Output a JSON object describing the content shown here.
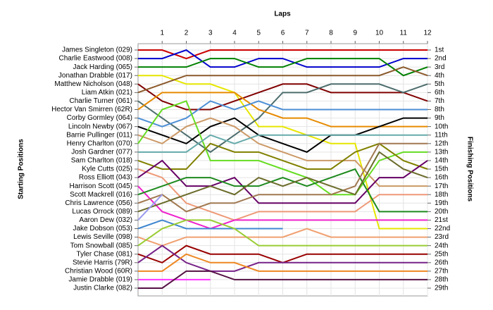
{
  "chart_data": {
    "type": "line",
    "title": "Laps",
    "y_label": "Starting Positions",
    "y2_label": "Finishing Positions",
    "x": [
      0,
      1,
      2,
      3,
      4,
      5,
      6,
      7,
      8,
      9,
      10,
      11,
      12
    ],
    "xlim": [
      0,
      12
    ],
    "xticks": [
      1,
      2,
      3,
      4,
      5,
      6,
      7,
      8,
      9,
      10,
      11,
      12
    ],
    "ylim": [
      1,
      29
    ],
    "y_inverted": true,
    "grid": true,
    "y2ticks": [
      {
        "value": 1,
        "label": "1st"
      },
      {
        "value": 2,
        "label": "2nd"
      },
      {
        "value": 3,
        "label": "3rd"
      },
      {
        "value": 4,
        "label": "4th"
      },
      {
        "value": 5,
        "label": "5th"
      },
      {
        "value": 6,
        "label": "6th"
      },
      {
        "value": 7,
        "label": "7th"
      },
      {
        "value": 8,
        "label": "8th"
      },
      {
        "value": 9,
        "label": "9th"
      },
      {
        "value": 10,
        "label": "10th"
      },
      {
        "value": 11,
        "label": "11th"
      },
      {
        "value": 12,
        "label": "12th"
      },
      {
        "value": 13,
        "label": "13th"
      },
      {
        "value": 14,
        "label": "14th"
      },
      {
        "value": 15,
        "label": "15th"
      },
      {
        "value": 16,
        "label": "16th"
      },
      {
        "value": 17,
        "label": "17th"
      },
      {
        "value": 18,
        "label": "18th"
      },
      {
        "value": 19,
        "label": "19th"
      },
      {
        "value": 20,
        "label": "20th"
      },
      {
        "value": 21,
        "label": "21st"
      },
      {
        "value": 22,
        "label": "22nd"
      },
      {
        "value": 23,
        "label": "23rd"
      },
      {
        "value": 24,
        "label": "24th"
      },
      {
        "value": 25,
        "label": "25th"
      },
      {
        "value": 26,
        "label": "26th"
      },
      {
        "value": 27,
        "label": "27th"
      },
      {
        "value": 28,
        "label": "28th"
      },
      {
        "value": 29,
        "label": "29th"
      }
    ],
    "series": [
      {
        "name": "James Singleton (029)",
        "color": "#cc0000",
        "values": [
          1,
          1,
          2,
          1,
          1,
          1,
          1,
          1,
          1,
          1,
          1,
          1,
          1
        ]
      },
      {
        "name": "Charlie Eastwood (008)",
        "color": "#0000cc",
        "values": [
          2,
          2,
          1,
          3,
          3,
          2,
          2,
          3,
          3,
          3,
          3,
          2,
          2
        ]
      },
      {
        "name": "Jack Harding (065)",
        "color": "#008000",
        "values": [
          3,
          3,
          3,
          2,
          2,
          3,
          3,
          2,
          2,
          2,
          2,
          4,
          3
        ]
      },
      {
        "name": "Jonathan Drabble (017)",
        "color": "#e6e600",
        "values": [
          4,
          4,
          5,
          5,
          6,
          10,
          10,
          11,
          12,
          12,
          22,
          22,
          22
        ]
      },
      {
        "name": "Matthew Nicholson (048)",
        "color": "#800000",
        "values": [
          5,
          7,
          8,
          8,
          7,
          6,
          5,
          5,
          6,
          6,
          6,
          6,
          7
        ]
      },
      {
        "name": "Liam Atkin (021)",
        "color": "#8b5a2b",
        "values": [
          6,
          5,
          4,
          4,
          4,
          4,
          4,
          4,
          4,
          4,
          4,
          3,
          4
        ]
      },
      {
        "name": "Charlie Turner (061)",
        "color": "#4d6d6d",
        "values": [
          7,
          9,
          11,
          13,
          11,
          9,
          6,
          6,
          5,
          5,
          5,
          6,
          5
        ]
      },
      {
        "name": "Hector Van Smirren (62R)",
        "color": "#e68a00",
        "values": [
          8,
          6,
          6,
          6,
          6,
          8,
          9,
          9,
          10,
          10,
          10,
          10,
          10
        ]
      },
      {
        "name": "Corby Gormley (064)",
        "color": "#4d8fd6",
        "values": [
          9,
          10,
          9,
          7,
          8,
          7,
          8,
          8,
          8,
          8,
          8,
          8,
          8
        ]
      },
      {
        "name": "Lincoln Newby (067)",
        "color": "#000000",
        "values": [
          10,
          11,
          12,
          10,
          9,
          11,
          12,
          13,
          11,
          11,
          10,
          9,
          9
        ]
      },
      {
        "name": "Barrie Pullinger (011)",
        "color": "#cc9966",
        "values": [
          11,
          12,
          10,
          9,
          10,
          12,
          13,
          14,
          14,
          14,
          17,
          17,
          17
        ]
      },
      {
        "name": "Henry Charlton (070)",
        "color": "#66dd22",
        "values": [
          12,
          8,
          7,
          14,
          14,
          14,
          15,
          16,
          18,
          18,
          14,
          13,
          13
        ]
      },
      {
        "name": "Josh Gardner (077)",
        "color": "#66aaaa",
        "values": [
          13,
          13,
          13,
          11,
          12,
          11,
          11,
          11,
          11,
          11,
          11,
          11,
          11
        ]
      },
      {
        "name": "Sam Charlton (018)",
        "color": "#808000",
        "values": [
          14,
          15,
          15,
          12,
          13,
          13,
          14,
          15,
          15,
          13,
          12,
          14,
          15
        ]
      },
      {
        "name": "Kyle Cutts (025)",
        "color": "#ee9977",
        "values": [
          15,
          16,
          19,
          20,
          21,
          20,
          20,
          20,
          20,
          20,
          18,
          18,
          18
        ]
      },
      {
        "name": "Ross Elliott (043)",
        "color": "#660066",
        "values": [
          16,
          14,
          17,
          17,
          16,
          19,
          19,
          19,
          19,
          19,
          16,
          16,
          14
        ]
      },
      {
        "name": "Harrison Scott (045)",
        "color": "#ee22cc",
        "values": [
          17,
          20,
          21,
          22,
          21,
          21,
          21,
          21,
          21,
          21,
          21,
          21,
          21
        ]
      },
      {
        "name": "Scott Mackrell (016)",
        "color": "#1e8a1e",
        "values": [
          18,
          17,
          16,
          16,
          17,
          17,
          16,
          17,
          16,
          15,
          20,
          20,
          20
        ]
      },
      {
        "name": "Chris Lawrence (056)",
        "color": "#a07850",
        "values": [
          19,
          18,
          20,
          19,
          19,
          18,
          18,
          18,
          18,
          17,
          12,
          12,
          12
        ]
      },
      {
        "name": "Lucas Orrock (089)",
        "color": "#6b6b2b",
        "values": [
          20,
          19,
          18,
          17,
          18,
          16,
          17,
          16,
          17,
          18,
          13,
          15,
          16
        ]
      },
      {
        "name": "Aaron Dew (032)",
        "color": "#9999ee",
        "values": [
          21,
          18,
          null,
          null,
          null,
          null,
          null,
          null,
          null,
          null,
          null,
          null,
          null
        ]
      },
      {
        "name": "Jake Dobson (053)",
        "color": "#3f86d0",
        "values": [
          22,
          21,
          22,
          22,
          22,
          22,
          22,
          null,
          null,
          null,
          null,
          null,
          null
        ]
      },
      {
        "name": "Lewis Seville (098)",
        "color": "#f0a070",
        "values": [
          23,
          24,
          23,
          23,
          23,
          23,
          23,
          22,
          23,
          23,
          23,
          23,
          23
        ]
      },
      {
        "name": "Tom Snowball (085)",
        "color": "#99cc33",
        "values": [
          24,
          22,
          21,
          21,
          22,
          24,
          24,
          24,
          24,
          24,
          24,
          24,
          24
        ]
      },
      {
        "name": "Tyler Chase (081)",
        "color": "#990000",
        "values": [
          25,
          26,
          24,
          25,
          25,
          25,
          26,
          25,
          25,
          25,
          25,
          25,
          25
        ]
      },
      {
        "name": "Stevie Harris (79R)",
        "color": "#772288",
        "values": [
          26,
          24,
          26,
          27,
          27,
          26,
          26,
          26,
          26,
          26,
          26,
          26,
          26
        ]
      },
      {
        "name": "Christian Wood (60R)",
        "color": "#ee8822",
        "values": [
          27,
          27,
          25,
          26,
          26,
          27,
          27,
          27,
          27,
          27,
          27,
          27,
          27
        ]
      },
      {
        "name": "Jamie Drabble (019)",
        "color": "#ff33ff",
        "values": [
          28,
          28,
          28,
          28,
          null,
          null,
          null,
          null,
          null,
          null,
          null,
          null,
          null
        ]
      },
      {
        "name": "Justin Clarke (082)",
        "color": "#551144",
        "values": [
          29,
          29,
          27,
          27,
          28,
          28,
          28,
          28,
          28,
          28,
          28,
          28,
          28
        ]
      }
    ]
  }
}
